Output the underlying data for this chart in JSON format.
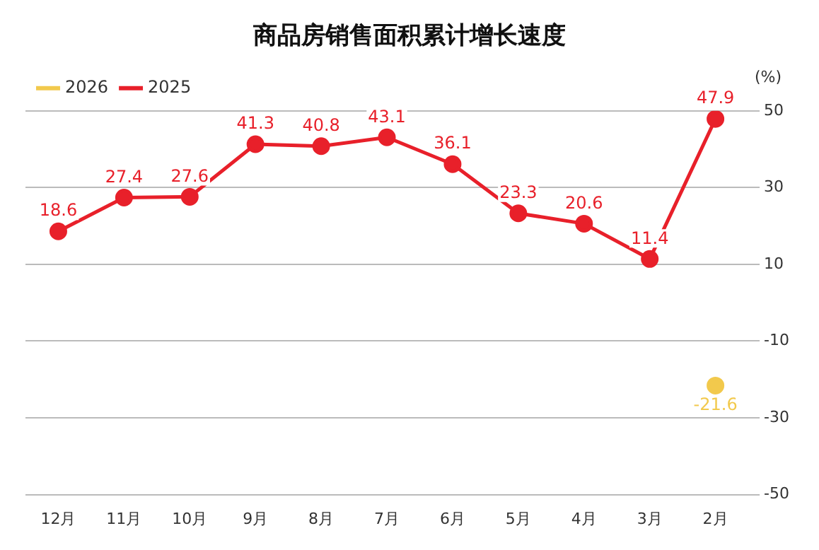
{
  "chart_data": {
    "type": "line",
    "title": "商品房销售面积累计增长速度",
    "ylabel": "(%)",
    "categories": [
      "12月",
      "11月",
      "10月",
      "9月",
      "8月",
      "7月",
      "6月",
      "5月",
      "4月",
      "3月",
      "2月"
    ],
    "series": [
      {
        "name": "2026",
        "color": "#f2c94c",
        "values": [
          null,
          null,
          null,
          null,
          null,
          null,
          null,
          null,
          null,
          null,
          -21.6
        ]
      },
      {
        "name": "2025",
        "color": "#e8202a",
        "values": [
          18.6,
          27.4,
          27.6,
          41.3,
          40.8,
          43.1,
          36.1,
          23.3,
          20.6,
          11.4,
          47.9
        ]
      }
    ],
    "ylim": [
      -50,
      50
    ],
    "yticks": [
      -50,
      -30,
      -10,
      10,
      30,
      50
    ],
    "grid": "y",
    "legend": "top left",
    "marker": "circle",
    "line_style": "solid",
    "data_labels": true
  }
}
